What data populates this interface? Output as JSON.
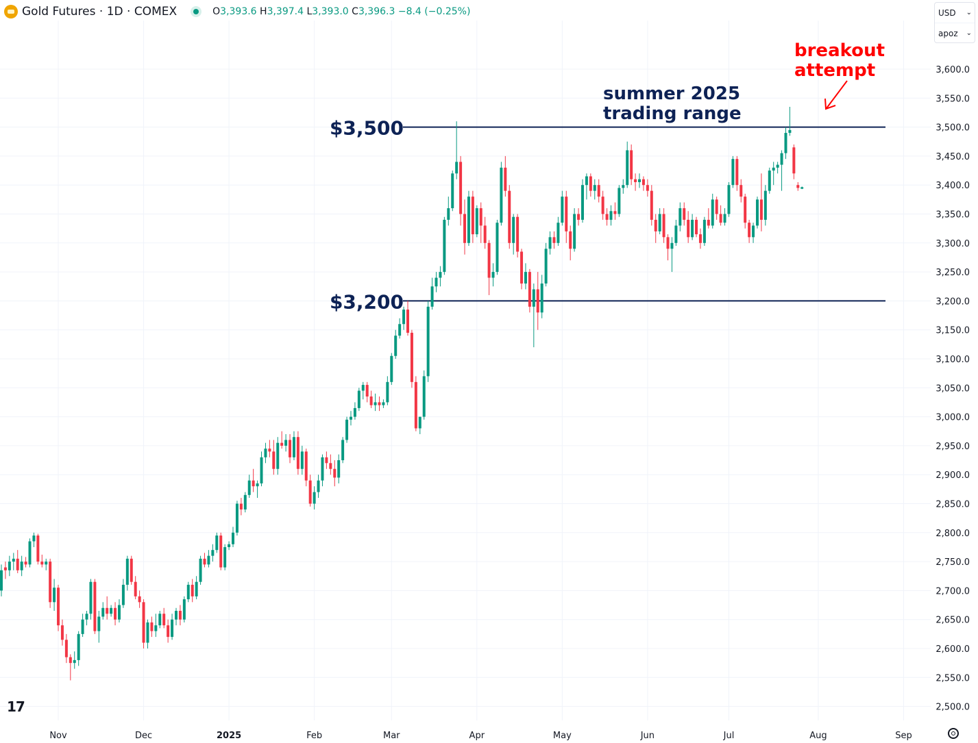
{
  "header": {
    "title": "Gold Futures · 1D · COMEX",
    "ohlc": [
      {
        "k": "O",
        "v": "3,393.6"
      },
      {
        "k": "H",
        "v": "3,397.4"
      },
      {
        "k": "L",
        "v": "3,393.0"
      },
      {
        "k": "C",
        "v": "3,396.3"
      }
    ],
    "change": "−8.4 (−0.25%)"
  },
  "currency": {
    "label": "USD",
    "mode": "apoz"
  },
  "colors": {
    "up": "#089981",
    "down": "#f23645",
    "line": "#0d2255",
    "annotation": "#0d2255",
    "breakout": "#ff0000"
  },
  "chart_data": {
    "type": "candlestick",
    "title": "Gold Futures · 1D · COMEX",
    "ylim": [
      2480,
      3640
    ],
    "y_ticks": [
      "3,600.0",
      "3,550.0",
      "3,500.0",
      "3,450.0",
      "3,400.0",
      "3,350.0",
      "3,300.0",
      "3,250.0",
      "3,200.0",
      "3,150.0",
      "3,100.0",
      "3,050.0",
      "3,000.0",
      "2,950.0",
      "2,900.0",
      "2,850.0",
      "2,800.0",
      "2,750.0",
      "2,700.0",
      "2,650.0",
      "2,600.0",
      "2,550.0",
      "2,500.0"
    ],
    "x_labels": [
      {
        "label": "Nov",
        "bar": 14,
        "bold": false
      },
      {
        "label": "Dec",
        "bar": 35,
        "bold": false
      },
      {
        "label": "2025",
        "bar": 56,
        "bold": true
      },
      {
        "label": "Feb",
        "bar": 77,
        "bold": false
      },
      {
        "label": "Mar",
        "bar": 96,
        "bold": false
      },
      {
        "label": "Apr",
        "bar": 117,
        "bold": false
      },
      {
        "label": "May",
        "bar": 138,
        "bold": false
      },
      {
        "label": "Jun",
        "bar": 159,
        "bold": false
      },
      {
        "label": "Jul",
        "bar": 179,
        "bold": false
      },
      {
        "label": "Aug",
        "bar": 201,
        "bold": false
      },
      {
        "label": "Sep",
        "bar": 222,
        "bold": false
      }
    ],
    "ohlc": [
      [
        2700,
        2745,
        2690,
        2735
      ],
      [
        2740,
        2750,
        2720,
        2735
      ],
      [
        2735,
        2760,
        2725,
        2750
      ],
      [
        2750,
        2765,
        2735,
        2755
      ],
      [
        2755,
        2770,
        2730,
        2735
      ],
      [
        2735,
        2760,
        2725,
        2750
      ],
      [
        2750,
        2758,
        2740,
        2745
      ],
      [
        2745,
        2790,
        2740,
        2785
      ],
      [
        2785,
        2800,
        2775,
        2795
      ],
      [
        2795,
        2798,
        2745,
        2750
      ],
      [
        2750,
        2762,
        2740,
        2745
      ],
      [
        2745,
        2755,
        2735,
        2750
      ],
      [
        2750,
        2755,
        2670,
        2680
      ],
      [
        2680,
        2720,
        2665,
        2705
      ],
      [
        2705,
        2710,
        2630,
        2640
      ],
      [
        2640,
        2650,
        2605,
        2615
      ],
      [
        2615,
        2625,
        2575,
        2585
      ],
      [
        2585,
        2590,
        2545,
        2575
      ],
      [
        2575,
        2595,
        2565,
        2580
      ],
      [
        2580,
        2630,
        2570,
        2625
      ],
      [
        2625,
        2660,
        2620,
        2650
      ],
      [
        2650,
        2665,
        2640,
        2660
      ],
      [
        2660,
        2720,
        2650,
        2715
      ],
      [
        2715,
        2720,
        2625,
        2630
      ],
      [
        2630,
        2665,
        2610,
        2655
      ],
      [
        2655,
        2680,
        2650,
        2670
      ],
      [
        2670,
        2690,
        2650,
        2660
      ],
      [
        2660,
        2675,
        2655,
        2670
      ],
      [
        2670,
        2680,
        2640,
        2650
      ],
      [
        2650,
        2685,
        2645,
        2675
      ],
      [
        2675,
        2720,
        2670,
        2710
      ],
      [
        2710,
        2760,
        2700,
        2755
      ],
      [
        2755,
        2760,
        2710,
        2715
      ],
      [
        2715,
        2725,
        2685,
        2690
      ],
      [
        2690,
        2700,
        2670,
        2680
      ],
      [
        2680,
        2685,
        2600,
        2610
      ],
      [
        2610,
        2650,
        2600,
        2645
      ],
      [
        2645,
        2655,
        2620,
        2630
      ],
      [
        2630,
        2660,
        2620,
        2640
      ],
      [
        2640,
        2665,
        2635,
        2660
      ],
      [
        2660,
        2670,
        2635,
        2640
      ],
      [
        2640,
        2650,
        2610,
        2620
      ],
      [
        2620,
        2660,
        2615,
        2650
      ],
      [
        2650,
        2670,
        2640,
        2665
      ],
      [
        2665,
        2675,
        2640,
        2650
      ],
      [
        2650,
        2690,
        2645,
        2685
      ],
      [
        2685,
        2715,
        2680,
        2710
      ],
      [
        2710,
        2720,
        2680,
        2690
      ],
      [
        2690,
        2725,
        2685,
        2715
      ],
      [
        2715,
        2760,
        2710,
        2755
      ],
      [
        2755,
        2765,
        2740,
        2745
      ],
      [
        2745,
        2770,
        2740,
        2760
      ],
      [
        2760,
        2780,
        2750,
        2770
      ],
      [
        2770,
        2800,
        2765,
        2795
      ],
      [
        2795,
        2800,
        2735,
        2740
      ],
      [
        2740,
        2780,
        2735,
        2775
      ],
      [
        2775,
        2785,
        2770,
        2780
      ],
      [
        2780,
        2810,
        2775,
        2800
      ],
      [
        2800,
        2855,
        2795,
        2850
      ],
      [
        2850,
        2860,
        2830,
        2840
      ],
      [
        2840,
        2870,
        2835,
        2865
      ],
      [
        2865,
        2900,
        2860,
        2890
      ],
      [
        2890,
        2910,
        2870,
        2880
      ],
      [
        2880,
        2890,
        2860,
        2885
      ],
      [
        2885,
        2940,
        2880,
        2930
      ],
      [
        2930,
        2955,
        2920,
        2945
      ],
      [
        2945,
        2960,
        2930,
        2940
      ],
      [
        2940,
        2960,
        2900,
        2910
      ],
      [
        2910,
        2965,
        2900,
        2955
      ],
      [
        2955,
        2975,
        2945,
        2950
      ],
      [
        2950,
        2970,
        2940,
        2960
      ],
      [
        2960,
        2970,
        2920,
        2930
      ],
      [
        2930,
        2975,
        2925,
        2965
      ],
      [
        2965,
        2975,
        2900,
        2910
      ],
      [
        2910,
        2950,
        2900,
        2940
      ],
      [
        2940,
        2945,
        2880,
        2890
      ],
      [
        2890,
        2900,
        2845,
        2850
      ],
      [
        2850,
        2880,
        2840,
        2870
      ],
      [
        2870,
        2900,
        2860,
        2890
      ],
      [
        2890,
        2935,
        2880,
        2930
      ],
      [
        2930,
        2940,
        2910,
        2920
      ],
      [
        2920,
        2935,
        2900,
        2910
      ],
      [
        2910,
        2925,
        2880,
        2895
      ],
      [
        2895,
        2935,
        2885,
        2925
      ],
      [
        2925,
        2965,
        2920,
        2960
      ],
      [
        2960,
        3000,
        2955,
        2995
      ],
      [
        2995,
        3010,
        2985,
        3000
      ],
      [
        3000,
        3025,
        2995,
        3015
      ],
      [
        3015,
        3050,
        3010,
        3045
      ],
      [
        3045,
        3060,
        3030,
        3055
      ],
      [
        3055,
        3060,
        3025,
        3035
      ],
      [
        3035,
        3045,
        3015,
        3020
      ],
      [
        3020,
        3040,
        3010,
        3025
      ],
      [
        3025,
        3035,
        3010,
        3020
      ],
      [
        3020,
        3030,
        3015,
        3025
      ],
      [
        3025,
        3070,
        3020,
        3060
      ],
      [
        3060,
        3110,
        3055,
        3105
      ],
      [
        3105,
        3150,
        3100,
        3140
      ],
      [
        3140,
        3170,
        3135,
        3160
      ],
      [
        3160,
        3190,
        3150,
        3185
      ],
      [
        3185,
        3200,
        3140,
        3145
      ],
      [
        3145,
        3150,
        3050,
        3060
      ],
      [
        3060,
        3070,
        2975,
        2980
      ],
      [
        2980,
        3000,
        2970,
        3000
      ],
      [
        3000,
        3080,
        2995,
        3070
      ],
      [
        3070,
        3200,
        3060,
        3190
      ],
      [
        3190,
        3240,
        3185,
        3225
      ],
      [
        3225,
        3250,
        3215,
        3240
      ],
      [
        3240,
        3260,
        3225,
        3250
      ],
      [
        3250,
        3345,
        3245,
        3340
      ],
      [
        3340,
        3380,
        3330,
        3360
      ],
      [
        3360,
        3425,
        3355,
        3420
      ],
      [
        3420,
        3510,
        3410,
        3440
      ],
      [
        3440,
        3450,
        3330,
        3350
      ],
      [
        3350,
        3375,
        3280,
        3300
      ],
      [
        3300,
        3390,
        3295,
        3380
      ],
      [
        3380,
        3390,
        3300,
        3315
      ],
      [
        3315,
        3365,
        3310,
        3360
      ],
      [
        3360,
        3370,
        3300,
        3330
      ],
      [
        3330,
        3345,
        3290,
        3300
      ],
      [
        3300,
        3305,
        3210,
        3240
      ],
      [
        3240,
        3265,
        3225,
        3250
      ],
      [
        3250,
        3340,
        3245,
        3335
      ],
      [
        3335,
        3440,
        3330,
        3430
      ],
      [
        3430,
        3450,
        3380,
        3390
      ],
      [
        3390,
        3400,
        3290,
        3300
      ],
      [
        3300,
        3350,
        3280,
        3345
      ],
      [
        3345,
        3350,
        3275,
        3285
      ],
      [
        3285,
        3290,
        3220,
        3230
      ],
      [
        3230,
        3265,
        3220,
        3250
      ],
      [
        3250,
        3255,
        3180,
        3190
      ],
      [
        3190,
        3230,
        3120,
        3220
      ],
      [
        3220,
        3250,
        3150,
        3180
      ],
      [
        3180,
        3245,
        3170,
        3230
      ],
      [
        3230,
        3300,
        3225,
        3290
      ],
      [
        3290,
        3320,
        3280,
        3310
      ],
      [
        3310,
        3320,
        3290,
        3300
      ],
      [
        3300,
        3345,
        3295,
        3335
      ],
      [
        3335,
        3390,
        3330,
        3380
      ],
      [
        3380,
        3390,
        3300,
        3320
      ],
      [
        3320,
        3330,
        3270,
        3290
      ],
      [
        3290,
        3360,
        3285,
        3350
      ],
      [
        3350,
        3360,
        3330,
        3340
      ],
      [
        3340,
        3410,
        3335,
        3400
      ],
      [
        3400,
        3420,
        3375,
        3415
      ],
      [
        3415,
        3420,
        3380,
        3390
      ],
      [
        3390,
        3410,
        3375,
        3400
      ],
      [
        3400,
        3410,
        3370,
        3380
      ],
      [
        3380,
        3390,
        3340,
        3350
      ],
      [
        3350,
        3360,
        3330,
        3340
      ],
      [
        3340,
        3365,
        3330,
        3355
      ],
      [
        3355,
        3370,
        3340,
        3350
      ],
      [
        3350,
        3400,
        3345,
        3395
      ],
      [
        3395,
        3410,
        3385,
        3400
      ],
      [
        3400,
        3475,
        3395,
        3460
      ],
      [
        3460,
        3470,
        3400,
        3410
      ],
      [
        3410,
        3420,
        3390,
        3405
      ],
      [
        3405,
        3420,
        3395,
        3410
      ],
      [
        3410,
        3415,
        3390,
        3400
      ],
      [
        3400,
        3410,
        3380,
        3390
      ],
      [
        3390,
        3400,
        3330,
        3340
      ],
      [
        3340,
        3350,
        3300,
        3320
      ],
      [
        3320,
        3360,
        3315,
        3350
      ],
      [
        3350,
        3360,
        3300,
        3310
      ],
      [
        3310,
        3315,
        3270,
        3290
      ],
      [
        3290,
        3310,
        3250,
        3300
      ],
      [
        3300,
        3340,
        3295,
        3330
      ],
      [
        3330,
        3370,
        3320,
        3360
      ],
      [
        3360,
        3370,
        3330,
        3340
      ],
      [
        3340,
        3355,
        3300,
        3310
      ],
      [
        3310,
        3350,
        3305,
        3340
      ],
      [
        3340,
        3345,
        3310,
        3315
      ],
      [
        3315,
        3325,
        3290,
        3300
      ],
      [
        3300,
        3345,
        3295,
        3340
      ],
      [
        3340,
        3360,
        3325,
        3330
      ],
      [
        3330,
        3385,
        3325,
        3375
      ],
      [
        3375,
        3380,
        3340,
        3350
      ],
      [
        3350,
        3365,
        3330,
        3335
      ],
      [
        3335,
        3360,
        3330,
        3350
      ],
      [
        3350,
        3405,
        3345,
        3400
      ],
      [
        3400,
        3450,
        3395,
        3445
      ],
      [
        3445,
        3450,
        3390,
        3400
      ],
      [
        3400,
        3410,
        3370,
        3380
      ],
      [
        3380,
        3385,
        3325,
        3335
      ],
      [
        3335,
        3340,
        3300,
        3310
      ],
      [
        3310,
        3335,
        3300,
        3330
      ],
      [
        3330,
        3380,
        3325,
        3375
      ],
      [
        3375,
        3420,
        3320,
        3340
      ],
      [
        3340,
        3400,
        3330,
        3390
      ],
      [
        3390,
        3430,
        3385,
        3425
      ],
      [
        3425,
        3440,
        3400,
        3430
      ],
      [
        3430,
        3440,
        3420,
        3435
      ],
      [
        3435,
        3460,
        3390,
        3455
      ],
      [
        3455,
        3500,
        3445,
        3490
      ],
      [
        3490,
        3535,
        3485,
        3495
      ],
      [
        3465,
        3470,
        3410,
        3420
      ],
      [
        3400,
        3405,
        3390,
        3395
      ],
      [
        3393.6,
        3397.4,
        3393.0,
        3396.3
      ]
    ],
    "levels": [
      {
        "label": "$3,500",
        "value": 3500
      },
      {
        "label": "$3,200",
        "value": 3200
      }
    ],
    "annotations": {
      "range": [
        "summer 2025",
        "trading range"
      ],
      "breakout": [
        "breakout",
        "attempt"
      ]
    }
  }
}
